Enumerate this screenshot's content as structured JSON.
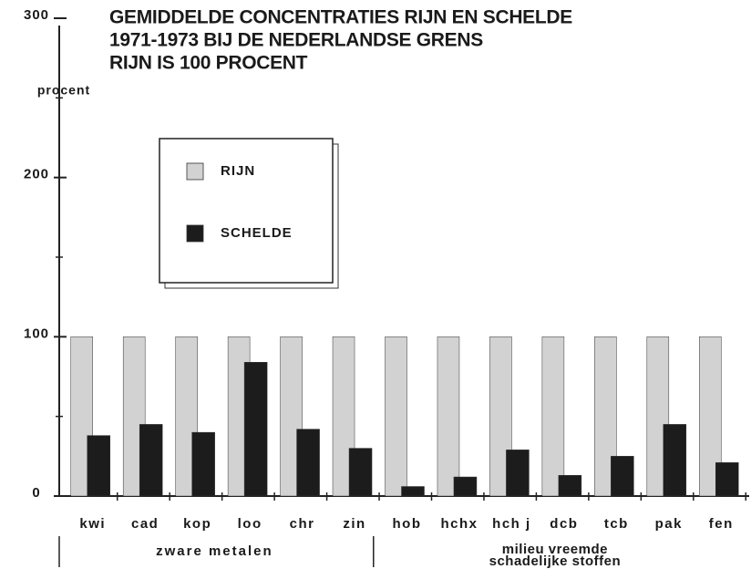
{
  "chart_data": {
    "type": "bar",
    "title": [
      "GEMIDDELDE CONCENTRATIES RIJN EN SCHELDE",
      "1971-1973 BIJ DE NEDERLANDSE GRENS",
      "RIJN IS 100 PROCENT"
    ],
    "y_label": "procent",
    "categories": [
      "kwi",
      "cad",
      "kop",
      "loo",
      "chr",
      "zin",
      "hob",
      "hchx",
      "hch j",
      "dcb",
      "tcb",
      "pak",
      "fen"
    ],
    "series": [
      {
        "name": "RIJN",
        "color": "#d2d2d2",
        "values": [
          100,
          100,
          100,
          100,
          100,
          100,
          100,
          100,
          100,
          100,
          100,
          100,
          100
        ]
      },
      {
        "name": "SCHELDE",
        "color": "#1c1c1c",
        "values": [
          38,
          45,
          40,
          84,
          42,
          30,
          6,
          12,
          29,
          13,
          25,
          45,
          21
        ]
      }
    ],
    "groups": [
      {
        "label": [
          "zware metalen"
        ],
        "size": 6
      },
      {
        "label": [
          "milieu vreemde",
          "schadelijke stoffen"
        ],
        "size": 7
      }
    ],
    "ylim": [
      0,
      300
    ],
    "yticks": [
      0,
      100,
      200,
      300
    ],
    "yminorticks": [
      50,
      150,
      250
    ],
    "grid": false
  }
}
